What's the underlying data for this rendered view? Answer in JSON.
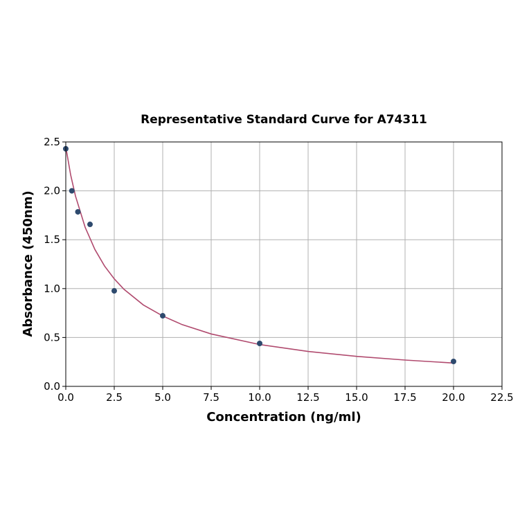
{
  "chart_data": {
    "type": "scatter",
    "title": "Representative Standard Curve for A74311",
    "xlabel": "Concentration (ng/ml)",
    "ylabel": "Absorbance (450nm)",
    "xlim": [
      0,
      22.5
    ],
    "ylim": [
      0,
      2.5
    ],
    "xticks": [
      "0.0",
      "2.5",
      "5.0",
      "7.5",
      "10.0",
      "12.5",
      "15.0",
      "17.5",
      "20.0",
      "22.5"
    ],
    "yticks": [
      "0.0",
      "0.5",
      "1.0",
      "1.5",
      "2.0",
      "2.5"
    ],
    "grid": true,
    "points": {
      "x": [
        0,
        0.3125,
        0.625,
        1.25,
        2.5,
        5,
        10,
        20
      ],
      "y": [
        2.43,
        2.0,
        1.785,
        1.657,
        0.977,
        0.722,
        0.439,
        0.255
      ],
      "color": "#2e4a6e"
    },
    "fit_curve": {
      "x": [
        0,
        0.25,
        0.5,
        1,
        1.5,
        2,
        2.5,
        3,
        4,
        5,
        6,
        7.5,
        10,
        12.5,
        15,
        17.5,
        20
      ],
      "y": [
        2.45,
        2.164,
        1.947,
        1.627,
        1.401,
        1.231,
        1.1,
        0.993,
        0.833,
        0.72,
        0.632,
        0.536,
        0.428,
        0.357,
        0.307,
        0.269,
        0.239
      ],
      "color": "#b04a6e"
    }
  }
}
